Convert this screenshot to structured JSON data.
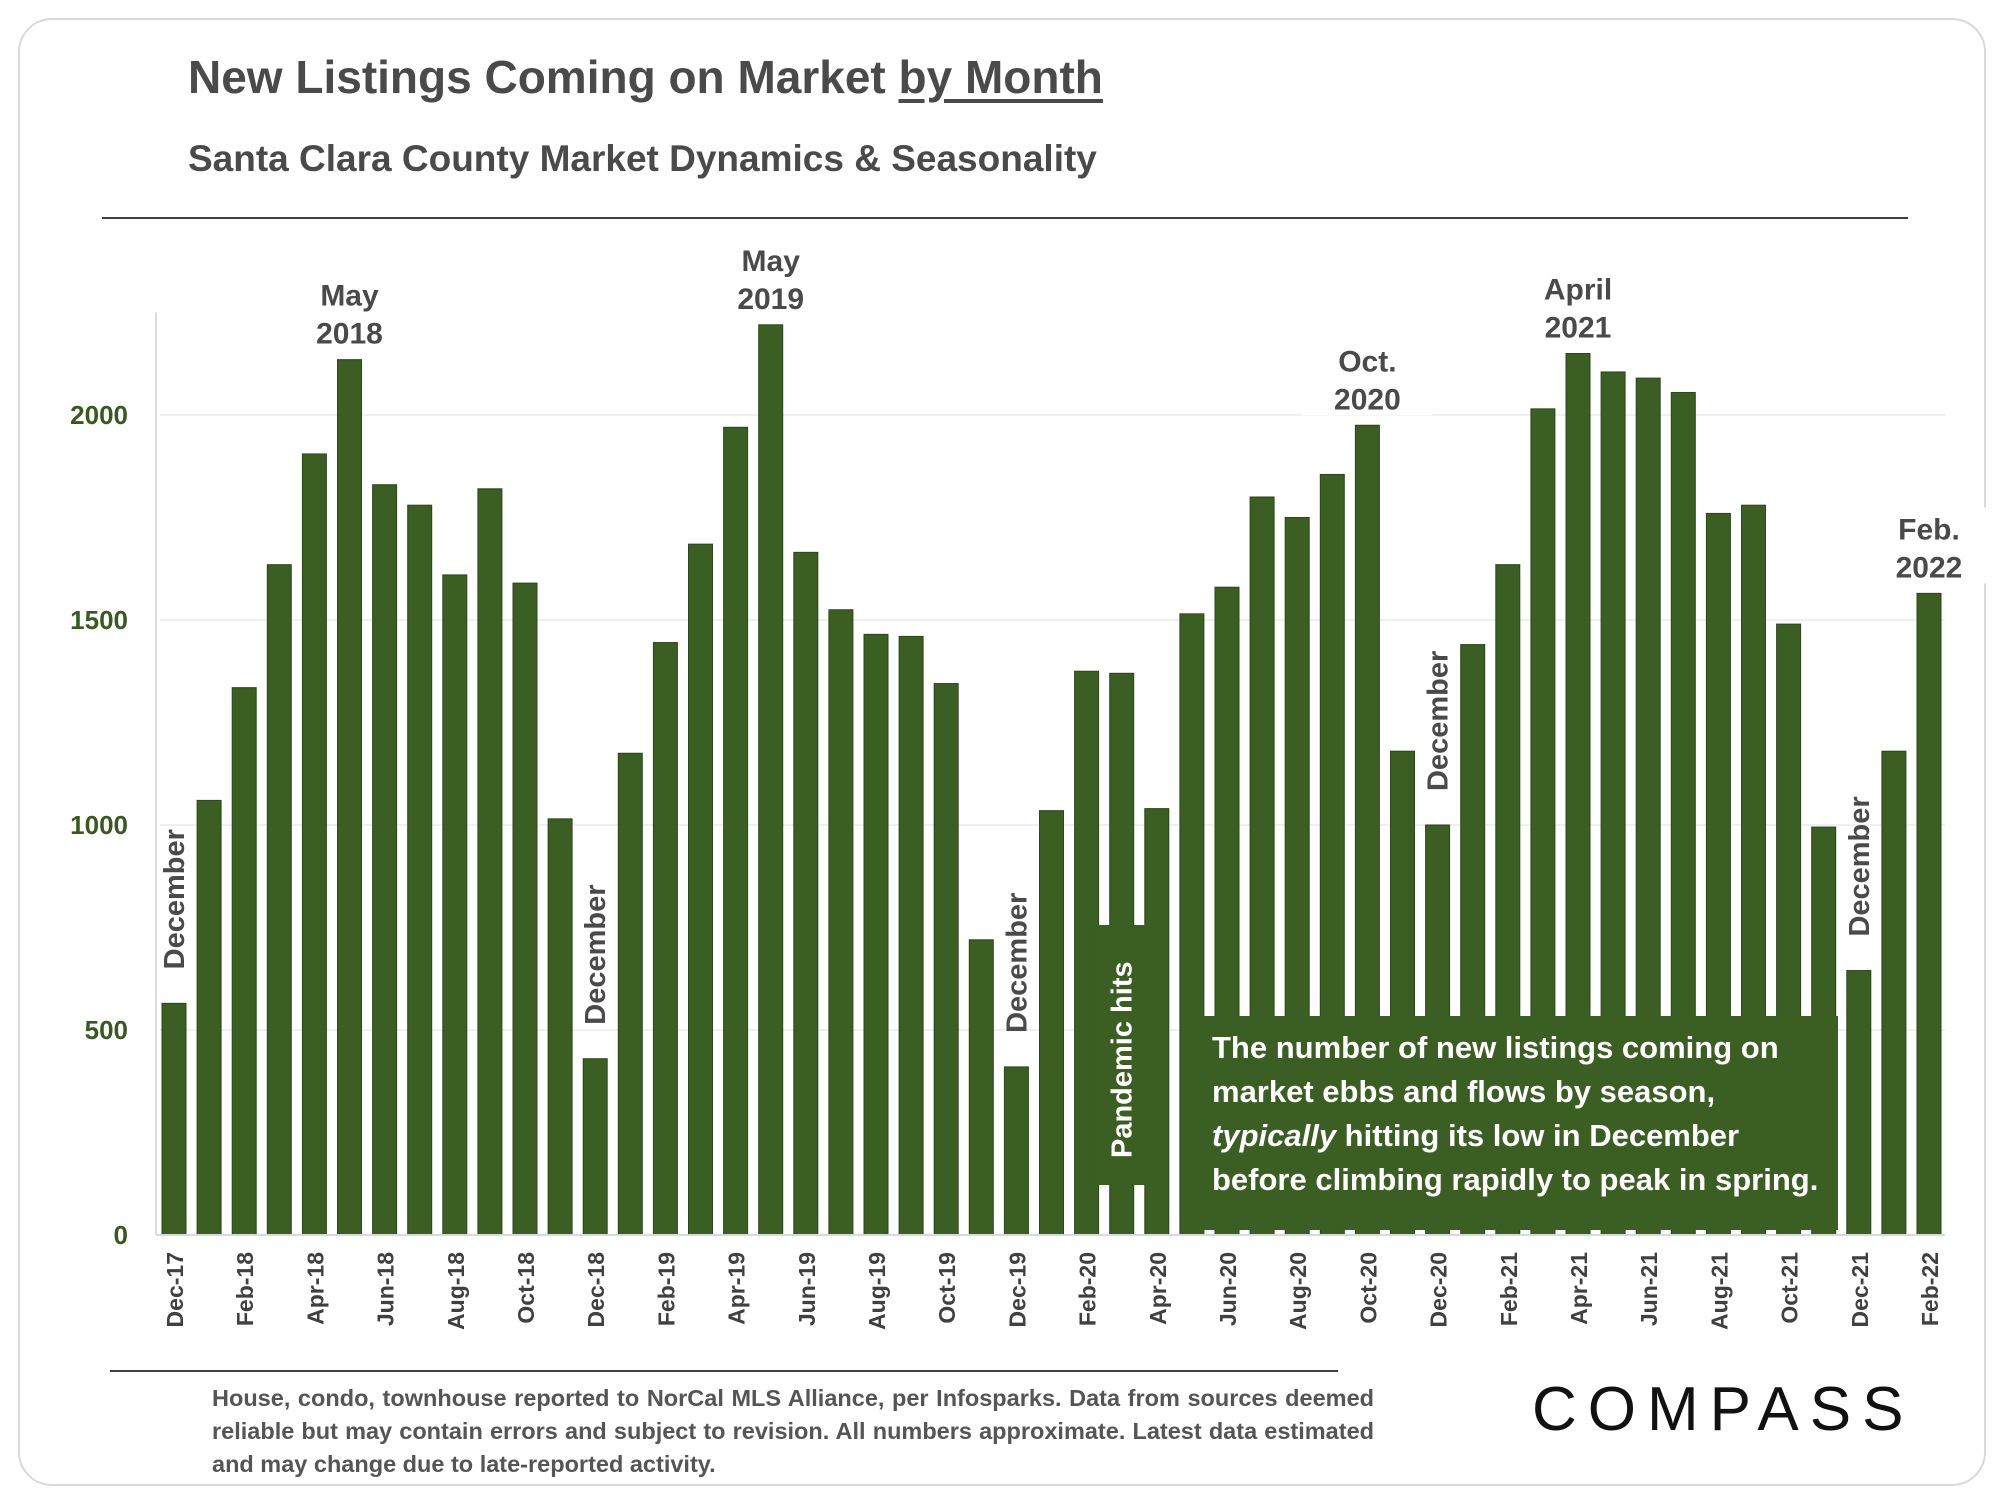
{
  "header": {
    "title_main": "New Listings Coming on Market ",
    "title_underlined": "by Month",
    "subtitle": "Santa Clara County Market Dynamics & Seasonality"
  },
  "chart_data": {
    "type": "bar",
    "title": "New Listings Coming on Market by Month",
    "subtitle": "Santa Clara County Market Dynamics & Seasonality",
    "ylim": [
      0,
      2250
    ],
    "yticks": [
      0,
      500,
      1000,
      1500,
      2000
    ],
    "grid": true,
    "bar_color": "#3b5e23",
    "categories": [
      "Dec-17",
      "Jan-18",
      "Feb-18",
      "Mar-18",
      "Apr-18",
      "May-18",
      "Jun-18",
      "Jul-18",
      "Aug-18",
      "Sep-18",
      "Oct-18",
      "Nov-18",
      "Dec-18",
      "Jan-19",
      "Feb-19",
      "Mar-19",
      "Apr-19",
      "May-19",
      "Jun-19",
      "Jul-19",
      "Aug-19",
      "Sep-19",
      "Oct-19",
      "Nov-19",
      "Dec-19",
      "Jan-20",
      "Feb-20",
      "Mar-20",
      "Apr-20",
      "May-20",
      "Jun-20",
      "Jul-20",
      "Aug-20",
      "Sep-20",
      "Oct-20",
      "Nov-20",
      "Dec-20",
      "Jan-21",
      "Feb-21",
      "Mar-21",
      "Apr-21",
      "May-21",
      "Jun-21",
      "Jul-21",
      "Aug-21",
      "Sep-21",
      "Oct-21",
      "Nov-21",
      "Dec-21",
      "Jan-22",
      "Feb-22"
    ],
    "visible_tick_labels": [
      "Dec-17",
      "Feb-18",
      "Apr-18",
      "Jun-18",
      "Aug-18",
      "Oct-18",
      "Dec-18",
      "Feb-19",
      "Apr-19",
      "Jun-19",
      "Aug-19",
      "Oct-19",
      "Dec-19",
      "Feb-20",
      "Apr-20",
      "Jun-20",
      "Aug-20",
      "Oct-20",
      "Dec-20",
      "Feb-21",
      "Apr-21",
      "Jun-21",
      "Aug-21",
      "Oct-21",
      "Dec-21",
      "Feb-22"
    ],
    "values": [
      565,
      1060,
      1335,
      1635,
      1905,
      2135,
      1830,
      1780,
      1610,
      1820,
      1590,
      1015,
      430,
      1175,
      1445,
      1685,
      1970,
      2220,
      1665,
      1525,
      1465,
      1460,
      1345,
      720,
      410,
      1035,
      1375,
      1370,
      1040,
      1515,
      1580,
      1800,
      1750,
      1855,
      1975,
      1180,
      1000,
      1440,
      1635,
      2015,
      2150,
      2105,
      2090,
      2055,
      1760,
      1780,
      1490,
      995,
      645,
      1180,
      1565
    ],
    "annotations": [
      {
        "text": "December",
        "category": "Dec-17",
        "style": "vertical"
      },
      {
        "text": "December",
        "category": "Dec-18",
        "style": "vertical"
      },
      {
        "text": "December",
        "category": "Dec-19",
        "style": "vertical"
      },
      {
        "text": "December",
        "category": "Dec-20",
        "style": "vertical"
      },
      {
        "text": "December",
        "category": "Dec-21",
        "style": "vertical"
      },
      {
        "text": "Pandemic hits",
        "category": "Mar-20",
        "style": "vertical-boxed"
      },
      {
        "text": "May|2018",
        "category": "May-18",
        "style": "peak"
      },
      {
        "text": "May|2019",
        "category": "May-19",
        "style": "peak"
      },
      {
        "text": "Oct.|2020",
        "category": "Oct-20",
        "style": "peak"
      },
      {
        "text": "April|2021",
        "category": "Apr-21",
        "style": "peak"
      },
      {
        "text": "Feb.|2022",
        "category": "Feb-22",
        "style": "peak"
      }
    ]
  },
  "note_box": {
    "line1": "The number of new listings coming on",
    "line2": "market ebbs and flows by season,",
    "line3_emphasis": "typically",
    "line3_rest": " hitting its low in December",
    "line4": "before climbing rapidly to peak in spring."
  },
  "footer": {
    "text": "House, condo, townhouse reported to NorCal MLS Alliance, per Infosparks. Data from sources deemed reliable but may contain errors and subject to revision. All numbers approximate. Latest data estimated and may change due to late-reported activity."
  },
  "logo": {
    "text": "COMPASS"
  }
}
